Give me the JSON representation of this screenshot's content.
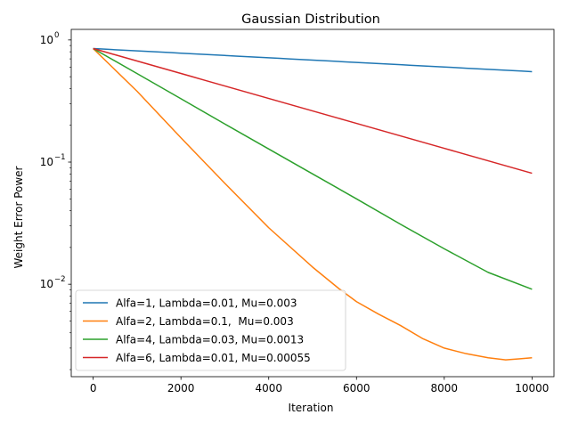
{
  "chart_data": {
    "type": "line",
    "title": "Gaussian Distribution",
    "xlabel": "Iteration",
    "ylabel": "Weight Error Power",
    "yscale": "log",
    "xlim": [
      -500,
      10500
    ],
    "ylim": [
      0.00175,
      1.22
    ],
    "xticks": [
      0,
      2000,
      4000,
      6000,
      8000,
      10000
    ],
    "xtick_labels": [
      "0",
      "2000",
      "4000",
      "6000",
      "8000",
      "10000"
    ],
    "yticks": [
      0.01,
      0.1,
      1
    ],
    "ytick_labels": [
      {
        "base": "10",
        "exp": "−2"
      },
      {
        "base": "10",
        "exp": "−1"
      },
      {
        "base": "10",
        "exp": "0"
      }
    ],
    "legend_position": "lower-left",
    "series": [
      {
        "name": "Alfa=1, Lambda=0.01, Mu=0.003",
        "color": "#1f77b4",
        "x": [
          0,
          10000
        ],
        "y": [
          0.85,
          0.55
        ]
      },
      {
        "name": "Alfa=2, Lambda=0.1,  Mu=0.003",
        "color": "#ff7f0e",
        "x": [
          0,
          1000,
          2000,
          3000,
          4000,
          5000,
          5600,
          6000,
          6500,
          7000,
          7500,
          8000,
          8500,
          9000,
          9400,
          9700,
          10000
        ],
        "y": [
          0.85,
          0.38,
          0.158,
          0.067,
          0.029,
          0.0138,
          0.0092,
          0.0072,
          0.0057,
          0.0046,
          0.0036,
          0.003,
          0.0027,
          0.0025,
          0.0024,
          0.00245,
          0.0025
        ]
      },
      {
        "name": "Alfa=4, Lambda=0.03, Mu=0.0013",
        "color": "#2ca02c",
        "x": [
          0,
          1000,
          2000,
          3000,
          4000,
          5000,
          6000,
          7000,
          8000,
          9000,
          10000
        ],
        "y": [
          0.85,
          0.53,
          0.33,
          0.205,
          0.128,
          0.08,
          0.05,
          0.031,
          0.0195,
          0.0125,
          0.0091
        ]
      },
      {
        "name": "Alfa=6, Lambda=0.01, Mu=0.00055",
        "color": "#d62728",
        "x": [
          0,
          10000
        ],
        "y": [
          0.85,
          0.081
        ]
      }
    ]
  }
}
